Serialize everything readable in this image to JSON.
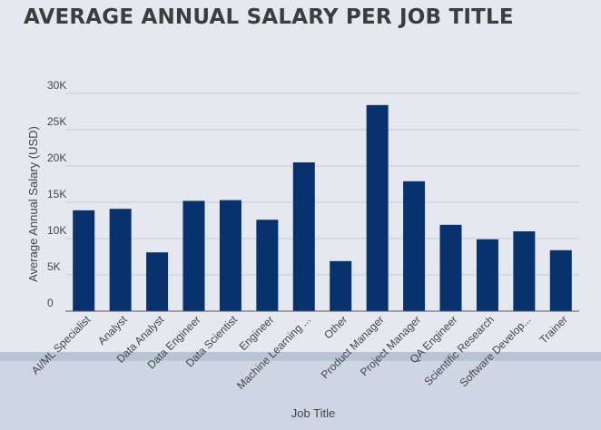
{
  "chart_data": {
    "type": "bar",
    "title": "AVERAGE ANNUAL SALARY PER JOB TITLE",
    "xlabel": "Job Title",
    "ylabel": "Average Annual Salary (USD)",
    "ylim": [
      0,
      30000
    ],
    "yticks": [
      {
        "value": 0,
        "label": "0"
      },
      {
        "value": 5000,
        "label": "5K"
      },
      {
        "value": 10000,
        "label": "10K"
      },
      {
        "value": 15000,
        "label": "15K"
      },
      {
        "value": 20000,
        "label": "20K"
      },
      {
        "value": 25000,
        "label": "25K"
      },
      {
        "value": 30000,
        "label": "30K"
      }
    ],
    "grid": true,
    "categories": [
      "AI/ML Specialist",
      "Analyst",
      "Data Analyst",
      "Data Engineer",
      "Data Scientist",
      "Engineer",
      "Machine Learning ...",
      "Other",
      "Product Manager",
      "Project Manager",
      "QA Engineer",
      "Scientific Research",
      "Software Develop...",
      "Trainer"
    ],
    "values": [
      13900,
      14100,
      8100,
      15200,
      15300,
      12600,
      20500,
      6900,
      28400,
      17900,
      11900,
      9900,
      11000,
      8400
    ],
    "bar_color": "#07326e"
  }
}
